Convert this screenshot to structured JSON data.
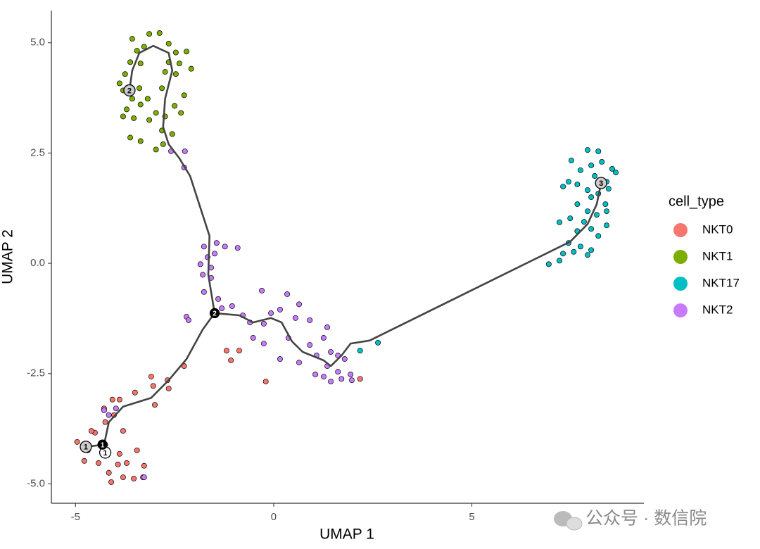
{
  "chart_data": {
    "type": "scatter",
    "xlabel": "UMAP 1",
    "ylabel": "UMAP 2",
    "legend_title": "cell_type",
    "legend_position": "right",
    "xlim": [
      -5.61,
      9.34
    ],
    "ylim": [
      -5.44,
      5.73
    ],
    "xticks": [
      -5,
      0,
      5
    ],
    "yticks": [
      {
        "value": -5,
        "label": "-5.0"
      },
      {
        "value": -2.5,
        "label": "-2.5"
      },
      {
        "value": 0,
        "label": "0.0"
      },
      {
        "value": 2.5,
        "label": "2.5"
      },
      {
        "value": 5,
        "label": "5.0"
      }
    ],
    "series": [
      {
        "name": "NKT0",
        "color": "#F8766D",
        "x": [
          -3.09,
          -2.68,
          -2.26,
          -3.04,
          -2.65,
          -3.5,
          -3.0,
          -4.07,
          -3.89,
          -4.28,
          -4.03,
          -4.25,
          -3.8,
          -4.51,
          -4.6,
          -4.96,
          -4.69,
          -4.25,
          -3.45,
          -3.89,
          -4.78,
          -4.42,
          -3.93,
          -3.71,
          -3.27,
          -4.16,
          -3.8,
          -3.53,
          -4.1,
          -3.3,
          -1.19,
          -0.87,
          -1.08,
          -0.2,
          2.18
        ],
        "values": [
          -2.57,
          -2.65,
          -2.33,
          -2.78,
          -2.84,
          -2.93,
          -3.21,
          -3.09,
          -3.09,
          -3.29,
          -3.44,
          -3.6,
          -3.8,
          -3.84,
          -3.8,
          -4.05,
          -4.24,
          -4.11,
          -4.24,
          -4.32,
          -4.48,
          -4.53,
          -4.56,
          -4.53,
          -4.59,
          -4.75,
          -4.85,
          -4.88,
          -4.96,
          -4.85,
          -1.98,
          -1.98,
          -2.2,
          -2.68,
          -2.62
        ]
      },
      {
        "name": "NKT1",
        "color": "#7CAE00",
        "x": [
          -3.57,
          -3.14,
          -2.88,
          -2.65,
          -3.27,
          -3.45,
          -2.47,
          -2.2,
          -3.62,
          -3.36,
          -2.65,
          -2.38,
          -2.08,
          -3.75,
          -2.74,
          -2.47,
          -3.89,
          -3.39,
          -3.8,
          -2.82,
          -3.57,
          -3.18,
          -2.26,
          -2.5,
          -3.71,
          -3.36,
          -2.97,
          -3.8,
          -2.74,
          -3.53,
          -3.14,
          -2.34,
          -2.82,
          -3.62,
          -3.36,
          -2.79,
          -2.97,
          -2.56
        ],
        "values": [
          5.09,
          5.2,
          5.22,
          4.98,
          4.91,
          4.82,
          4.78,
          4.8,
          4.56,
          4.53,
          4.56,
          4.53,
          4.41,
          4.29,
          4.34,
          4.29,
          4.08,
          3.97,
          3.92,
          3.97,
          3.73,
          3.73,
          3.81,
          3.57,
          3.49,
          3.6,
          3.41,
          3.33,
          3.33,
          3.29,
          3.25,
          3.41,
          3.01,
          2.85,
          2.77,
          2.7,
          2.58,
          2.93
        ]
      },
      {
        "name": "NKT17",
        "color": "#00BFC4",
        "x": [
          7.92,
          8.19,
          7.51,
          8.01,
          8.28,
          8.54,
          7.74,
          7.44,
          7.66,
          8.1,
          8.4,
          8.63,
          7.3,
          7.92,
          8.19,
          8.45,
          8.01,
          8.37,
          7.66,
          7.92,
          8.15,
          8.4,
          7.48,
          7.83,
          8.4,
          7.21,
          8.01,
          7.66,
          8.19,
          7.44,
          7.74,
          8.01,
          7.3,
          7.57,
          7.92,
          6.94,
          7.21,
          2.18,
          2.63
        ],
        "values": [
          2.57,
          2.54,
          2.33,
          2.22,
          2.3,
          2.14,
          2.11,
          1.85,
          1.79,
          1.98,
          1.85,
          2.06,
          1.74,
          1.66,
          1.58,
          1.69,
          1.5,
          1.34,
          1.34,
          1.18,
          1.1,
          1.18,
          1.02,
          0.94,
          0.86,
          0.93,
          0.78,
          0.73,
          0.62,
          0.46,
          0.38,
          0.3,
          0.22,
          0.26,
          0.19,
          -0.02,
          0.06,
          -1.98,
          -1.8
        ]
      },
      {
        "name": "NKT2",
        "color": "#C77CFF",
        "x": [
          -2.59,
          -2.24,
          -2.26,
          -1.76,
          -1.44,
          -1.23,
          -0.91,
          -1.67,
          -1.49,
          -1.85,
          -1.58,
          -1.79,
          -1.58,
          -1.76,
          -1.4,
          -0.3,
          0.34,
          0.64,
          -1.31,
          -1.05,
          -2.2,
          -2.15,
          -0.78,
          -0.07,
          0.16,
          0.55,
          0.91,
          -0.6,
          -0.25,
          1.35,
          -0.52,
          -0.25,
          0.37,
          0.91,
          1.26,
          0.16,
          0.64,
          1.08,
          1.44,
          1.62,
          1.79,
          1.35,
          1.62,
          1.26,
          1.05,
          1.44,
          1.94,
          1.71,
          1.97,
          -4.28,
          -3.98,
          -4.16,
          -3.27
        ],
        "values": [
          2.54,
          2.54,
          2.17,
          0.38,
          0.46,
          0.38,
          0.35,
          0.14,
          0.22,
          -0.02,
          -0.1,
          -0.26,
          -0.33,
          -0.65,
          -0.81,
          -0.62,
          -0.7,
          -0.93,
          -1.02,
          -0.97,
          -1.21,
          -1.29,
          -1.18,
          -1.13,
          -1.05,
          -1.24,
          -1.29,
          -1.34,
          -1.37,
          -1.45,
          -1.69,
          -1.82,
          -1.69,
          -1.85,
          -1.69,
          -2.17,
          -2.25,
          -2.09,
          -2.01,
          -2.09,
          -2.17,
          -2.33,
          -2.46,
          -2.57,
          -2.52,
          -2.68,
          -2.52,
          -2.62,
          -2.65,
          -3.33,
          -3.29,
          -3.44,
          -4.85
        ]
      }
    ],
    "trajectory_color": "#444444",
    "trajectory": [
      {
        "x": [
          -4.28,
          -4.16,
          -3.8,
          -3.09,
          -2.65,
          -2.2,
          -1.79,
          -1.49,
          -1.65,
          -1.62,
          -2.11,
          -2.38,
          -2.65,
          -2.79,
          -2.74,
          -2.56,
          -2.65,
          -3.04,
          -3.39,
          -3.57,
          -3.64
        ],
        "y": [
          -4.11,
          -3.6,
          -3.25,
          -3.05,
          -2.65,
          -2.17,
          -1.5,
          -1.13,
          -0.26,
          0.62,
          1.98,
          2.38,
          2.7,
          3.09,
          3.73,
          4.37,
          4.77,
          4.93,
          4.77,
          4.37,
          3.92
        ]
      },
      {
        "x": [
          -1.49,
          -0.87,
          -0.52,
          -0.07,
          0.2,
          0.46,
          0.73,
          1.26,
          1.44,
          1.71,
          1.94,
          2.42,
          7.48,
          7.92,
          8.15,
          8.26
        ],
        "y": [
          -1.13,
          -1.18,
          -1.34,
          -1.24,
          -1.34,
          -1.77,
          -2.01,
          -2.2,
          -2.33,
          -2.09,
          -1.82,
          -1.75,
          0.49,
          0.89,
          1.34,
          1.82
        ]
      },
      {
        "x": [
          -4.28,
          -4.74
        ],
        "y": [
          -4.11,
          -4.16
        ]
      }
    ],
    "nodes": [
      {
        "x": -4.74,
        "y": -4.16,
        "label": "1",
        "fill": "#cccccc",
        "text_color": "#000000"
      },
      {
        "x": -3.64,
        "y": 3.92,
        "label": "2",
        "fill": "#cccccc",
        "text_color": "#000000"
      },
      {
        "x": 8.26,
        "y": 1.82,
        "label": "3",
        "fill": "#cccccc",
        "text_color": "#000000"
      },
      {
        "x": -4.25,
        "y": -4.29,
        "label": "1",
        "fill": "#ffffff",
        "text_color": "#000000"
      },
      {
        "x": -4.32,
        "y": -4.11,
        "label": "1",
        "fill": "#000000",
        "text_color": "#ffffff"
      },
      {
        "x": -1.49,
        "y": -1.13,
        "label": "2",
        "fill": "#000000",
        "text_color": "#ffffff"
      }
    ]
  },
  "watermark": "公众号 · 数信院"
}
